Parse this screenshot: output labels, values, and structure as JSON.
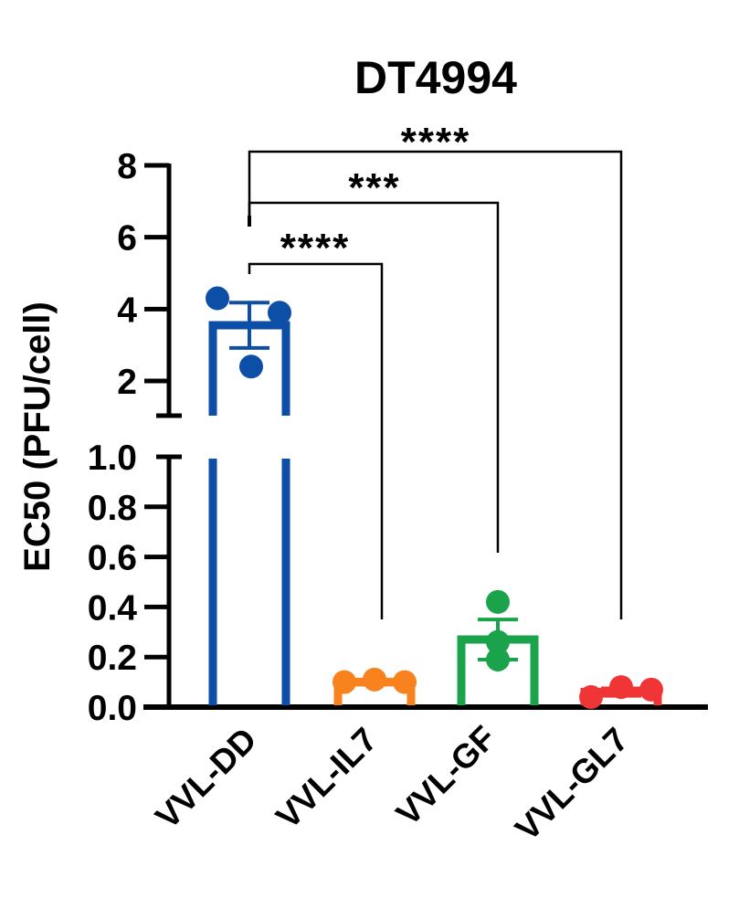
{
  "chart_data": {
    "type": "bar",
    "title": "DT4994",
    "xlabel": "",
    "ylabel": "EC50 (PFU/cell)",
    "categories": [
      "VVL-DD",
      "VVL-IL7",
      "VVL-GF",
      "VVL-GL7"
    ],
    "values": [
      3.55,
      0.1,
      0.27,
      0.06
    ],
    "sem": [
      0.63,
      0.01,
      0.08,
      0.015
    ],
    "points": [
      [
        4.3,
        3.9,
        2.4
      ],
      [
        0.1,
        0.11,
        0.1
      ],
      [
        0.42,
        0.26,
        0.19
      ],
      [
        0.04,
        0.08,
        0.07
      ]
    ],
    "colors": [
      "#0d4ea6",
      "#f7821e",
      "#1aa34a",
      "#ef3535"
    ],
    "ylim": [
      0,
      8
    ],
    "y_axis_break": [
      1.0,
      1.0
    ],
    "lower_segment": {
      "range": [
        0,
        1.0
      ],
      "ticks": [
        "0.0",
        "0.2",
        "0.4",
        "0.6",
        "0.8",
        "1.0"
      ]
    },
    "upper_segment": {
      "range": [
        1.0,
        8
      ],
      "ticks": [
        "2",
        "4",
        "6",
        "8"
      ]
    },
    "grid": false,
    "legend": null,
    "annotations": [
      {
        "from": "VVL-DD",
        "to": "VVL-IL7",
        "label": "****"
      },
      {
        "from": "VVL-DD",
        "to": "VVL-GF",
        "label": "***"
      },
      {
        "from": "VVL-DD",
        "to": "VVL-GL7",
        "label": "****"
      }
    ]
  }
}
